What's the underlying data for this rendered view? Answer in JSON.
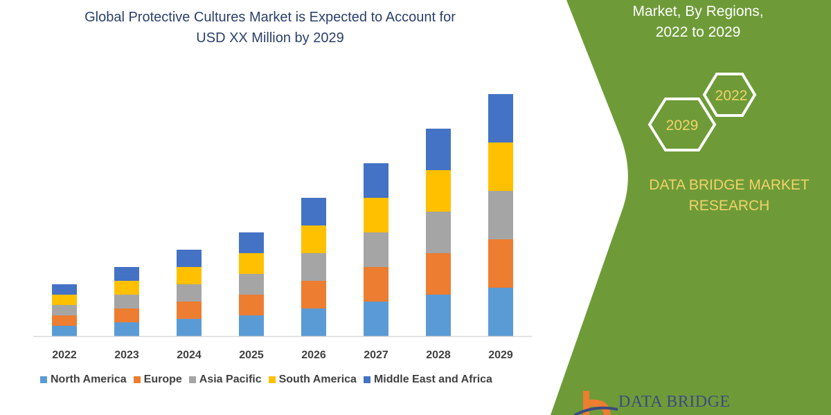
{
  "header": {
    "title_line1": "Global Protective Cultures Market is Expected to Account for",
    "title_line2": "USD XX Million by 2029"
  },
  "panel": {
    "subtitle_line1": "Market, By Regions,",
    "subtitle_line2": "2022 to 2029",
    "hex_start": "2022",
    "hex_end": "2029",
    "brand_line1": "DATA BRIDGE MARKET",
    "brand_line2": "RESEARCH",
    "logo_text": "DATA BRIDGE",
    "green": "#6e9b38",
    "accent_yellow": "#f2d36a"
  },
  "chart_data": {
    "type": "bar",
    "stacked": true,
    "title": "",
    "xlabel": "",
    "ylabel": "",
    "ylim": [
      0,
      35
    ],
    "grid": false,
    "legend_position": "bottom",
    "categories": [
      "2022",
      "2023",
      "2024",
      "2025",
      "2026",
      "2027",
      "2028",
      "2029"
    ],
    "series": [
      {
        "name": "North America",
        "color": "#5b9bd5",
        "values": [
          1.5,
          2,
          2.5,
          3,
          4,
          5,
          6,
          7
        ]
      },
      {
        "name": "Europe",
        "color": "#ed7d31",
        "values": [
          1.5,
          2,
          2.5,
          3,
          4,
          5,
          6,
          7
        ]
      },
      {
        "name": "Asia Pacific",
        "color": "#a5a5a5",
        "values": [
          1.5,
          2,
          2.5,
          3,
          4,
          5,
          6,
          7
        ]
      },
      {
        "name": "South America",
        "color": "#ffc000",
        "values": [
          1.5,
          2,
          2.5,
          3,
          4,
          5,
          6,
          7
        ]
      },
      {
        "name": "Middle East and Africa",
        "color": "#4472c4",
        "values": [
          1.5,
          2,
          2.5,
          3,
          4,
          5,
          6,
          7
        ]
      }
    ]
  }
}
